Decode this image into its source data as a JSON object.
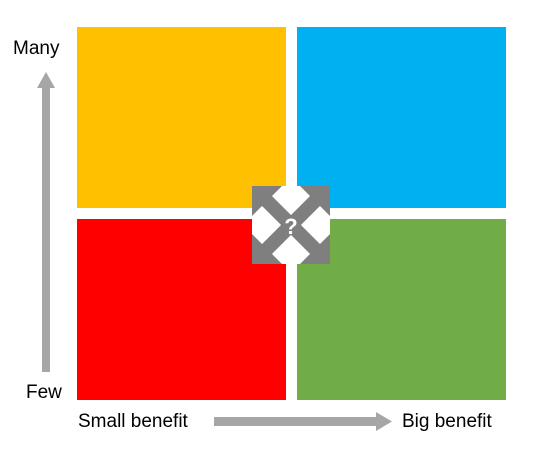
{
  "axes": {
    "y_top_label": "Many",
    "y_bottom_label": "Few",
    "x_left_label": "Small benefit",
    "x_right_label": "Big benefit"
  },
  "center_icon": {
    "name": "expand-arrows-icon",
    "symbol": "?"
  },
  "colors": {
    "top_left": "#FFC000",
    "top_right": "#00B0F0",
    "bottom_left": "#FF0000",
    "bottom_right": "#70AD47",
    "arrow": "#A6A6A6",
    "icon": "#7F7F7F"
  }
}
